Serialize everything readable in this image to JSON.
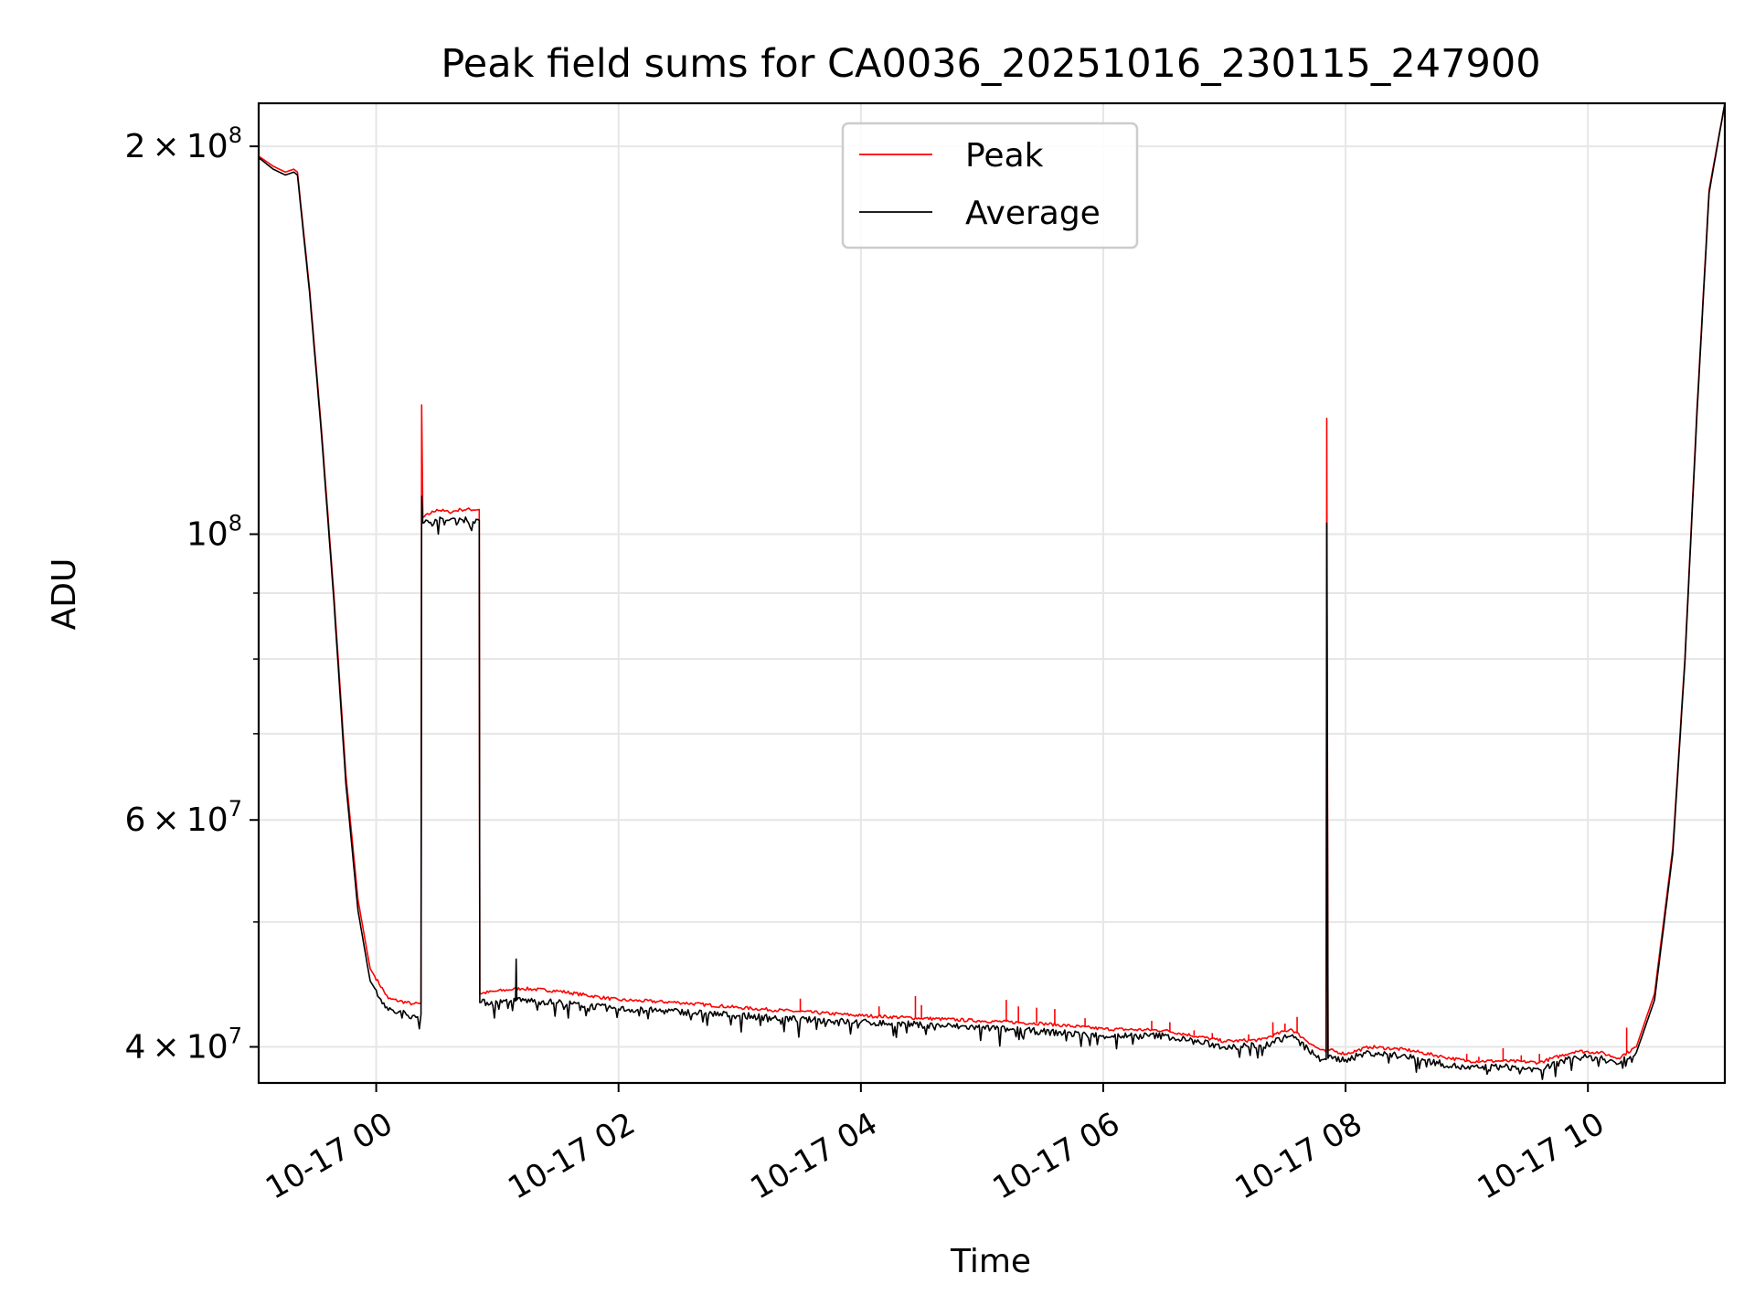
{
  "chart_data": {
    "type": "line",
    "title": "Peak field sums for CA0036_20251016_230115_247900",
    "xlabel": "Time",
    "ylabel": "ADU",
    "yscale": "log",
    "xlim": [
      -0.97,
      11.13
    ],
    "ylim": [
      37500000,
      216000000
    ],
    "grid": true,
    "legend_position": "upper-center",
    "x_unit": "hours since 2025-10-17 00:00",
    "x_ticks": [
      {
        "value": 0,
        "label": "10-17 00"
      },
      {
        "value": 2,
        "label": "10-17 02"
      },
      {
        "value": 4,
        "label": "10-17 04"
      },
      {
        "value": 6,
        "label": "10-17 06"
      },
      {
        "value": 8,
        "label": "10-17 08"
      },
      {
        "value": 10,
        "label": "10-17 10"
      }
    ],
    "y_ticks": [
      {
        "value": 40000000,
        "mant": "4",
        "exp": "7"
      },
      {
        "value": 60000000,
        "mant": "6",
        "exp": "7"
      },
      {
        "value": 100000000,
        "mant": "",
        "exp": "8"
      },
      {
        "value": 200000000,
        "mant": "2",
        "exp": "8"
      }
    ],
    "y_minor_ticks": [
      50000000,
      70000000,
      80000000,
      90000000
    ],
    "series": [
      {
        "name": "Peak",
        "color": "#ff0000",
        "points": [
          [
            -0.97,
            196500000
          ],
          [
            -0.85,
            193000000
          ],
          [
            -0.75,
            191000000
          ],
          [
            -0.68,
            192000000
          ],
          [
            -0.65,
            191000000
          ],
          [
            -0.55,
            155000000
          ],
          [
            -0.45,
            120000000
          ],
          [
            -0.35,
            90000000
          ],
          [
            -0.25,
            65000000
          ],
          [
            -0.15,
            52000000
          ],
          [
            -0.05,
            46000000
          ],
          [
            0.1,
            43600000
          ],
          [
            0.3,
            43200000
          ],
          [
            0.37,
            43200000
          ],
          [
            0.375,
            126000000
          ],
          [
            0.385,
            103000000
          ],
          [
            0.5,
            104500000
          ],
          [
            0.6,
            104000000
          ],
          [
            0.7,
            104500000
          ],
          [
            0.85,
            104500000
          ],
          [
            0.855,
            44000000
          ],
          [
            1.0,
            44200000
          ],
          [
            1.1,
            44300000
          ],
          [
            1.2,
            44400000
          ],
          [
            1.5,
            44200000
          ],
          [
            2.0,
            43500000
          ],
          [
            2.5,
            43300000
          ],
          [
            3.0,
            42900000
          ],
          [
            3.5,
            42600000
          ],
          [
            4.0,
            42300000
          ],
          [
            4.5,
            42100000
          ],
          [
            5.0,
            41900000
          ],
          [
            5.5,
            41700000
          ],
          [
            6.0,
            41300000
          ],
          [
            6.5,
            41200000
          ],
          [
            7.0,
            40400000
          ],
          [
            7.3,
            40500000
          ],
          [
            7.55,
            41300000
          ],
          [
            7.75,
            40000000
          ],
          [
            7.84,
            39600000
          ],
          [
            7.845,
            123000000
          ],
          [
            7.855,
            39800000
          ],
          [
            8.0,
            39500000
          ],
          [
            8.2,
            40000000
          ],
          [
            8.5,
            39800000
          ],
          [
            8.8,
            39300000
          ],
          [
            9.0,
            39000000
          ],
          [
            9.3,
            39000000
          ],
          [
            9.6,
            38900000
          ],
          [
            9.9,
            39700000
          ],
          [
            10.1,
            39600000
          ],
          [
            10.25,
            39200000
          ],
          [
            10.4,
            40000000
          ],
          [
            10.55,
            44000000
          ],
          [
            10.7,
            57000000
          ],
          [
            10.8,
            80000000
          ],
          [
            10.9,
            125000000
          ],
          [
            11.0,
            185000000
          ],
          [
            11.13,
            216000000
          ]
        ]
      },
      {
        "name": "Average",
        "color": "#000000",
        "points": [
          [
            -0.97,
            196000000
          ],
          [
            -0.85,
            192000000
          ],
          [
            -0.75,
            190000000
          ],
          [
            -0.68,
            191000000
          ],
          [
            -0.65,
            190000000
          ],
          [
            -0.55,
            154000000
          ],
          [
            -0.45,
            119000000
          ],
          [
            -0.35,
            89000000
          ],
          [
            -0.25,
            64000000
          ],
          [
            -0.15,
            51000000
          ],
          [
            -0.05,
            45000000
          ],
          [
            0.1,
            42700000
          ],
          [
            0.3,
            42300000
          ],
          [
            0.37,
            42400000
          ],
          [
            0.375,
            107000000
          ],
          [
            0.385,
            102000000
          ],
          [
            0.5,
            102500000
          ],
          [
            0.6,
            102500000
          ],
          [
            0.7,
            102700000
          ],
          [
            0.85,
            102500000
          ],
          [
            0.855,
            43300000
          ],
          [
            1.0,
            43300000
          ],
          [
            1.15,
            43400000
          ],
          [
            1.155,
            46800000
          ],
          [
            1.16,
            43500000
          ],
          [
            1.5,
            43300000
          ],
          [
            2.0,
            42800000
          ],
          [
            2.5,
            42600000
          ],
          [
            3.0,
            42300000
          ],
          [
            3.5,
            42000000
          ],
          [
            4.0,
            41800000
          ],
          [
            4.5,
            41600000
          ],
          [
            5.0,
            41400000
          ],
          [
            5.5,
            41100000
          ],
          [
            6.0,
            40800000
          ],
          [
            6.5,
            40800000
          ],
          [
            7.0,
            40000000
          ],
          [
            7.3,
            40100000
          ],
          [
            7.55,
            40800000
          ],
          [
            7.75,
            39400000
          ],
          [
            7.84,
            39100000
          ],
          [
            7.845,
            102000000
          ],
          [
            7.855,
            39200000
          ],
          [
            8.0,
            39100000
          ],
          [
            8.2,
            39600000
          ],
          [
            8.5,
            39300000
          ],
          [
            8.8,
            38800000
          ],
          [
            9.0,
            38500000
          ],
          [
            9.3,
            38600000
          ],
          [
            9.6,
            38400000
          ],
          [
            9.9,
            39300000
          ],
          [
            10.1,
            39200000
          ],
          [
            10.25,
            38800000
          ],
          [
            10.4,
            39600000
          ],
          [
            10.55,
            43500000
          ],
          [
            10.7,
            56500000
          ],
          [
            10.8,
            79500000
          ],
          [
            10.9,
            124000000
          ],
          [
            11.0,
            184000000
          ],
          [
            11.13,
            216000000
          ]
        ]
      }
    ],
    "peak_spikes": [
      [
        3.5,
        43600000
      ],
      [
        4.15,
        43000000
      ],
      [
        4.45,
        43800000
      ],
      [
        4.5,
        43100000
      ],
      [
        5.2,
        43500000
      ],
      [
        5.3,
        43000000
      ],
      [
        5.45,
        42900000
      ],
      [
        5.6,
        42800000
      ],
      [
        5.85,
        42100000
      ],
      [
        6.4,
        41900000
      ],
      [
        6.55,
        41800000
      ],
      [
        6.75,
        41200000
      ],
      [
        6.9,
        41000000
      ],
      [
        7.2,
        40900000
      ],
      [
        7.4,
        41800000
      ],
      [
        7.5,
        41700000
      ],
      [
        7.6,
        42200000
      ],
      [
        9.0,
        39500000
      ],
      [
        9.1,
        39300000
      ],
      [
        9.3,
        39900000
      ],
      [
        9.45,
        39400000
      ],
      [
        9.6,
        39500000
      ],
      [
        10.32,
        41400000
      ]
    ]
  }
}
